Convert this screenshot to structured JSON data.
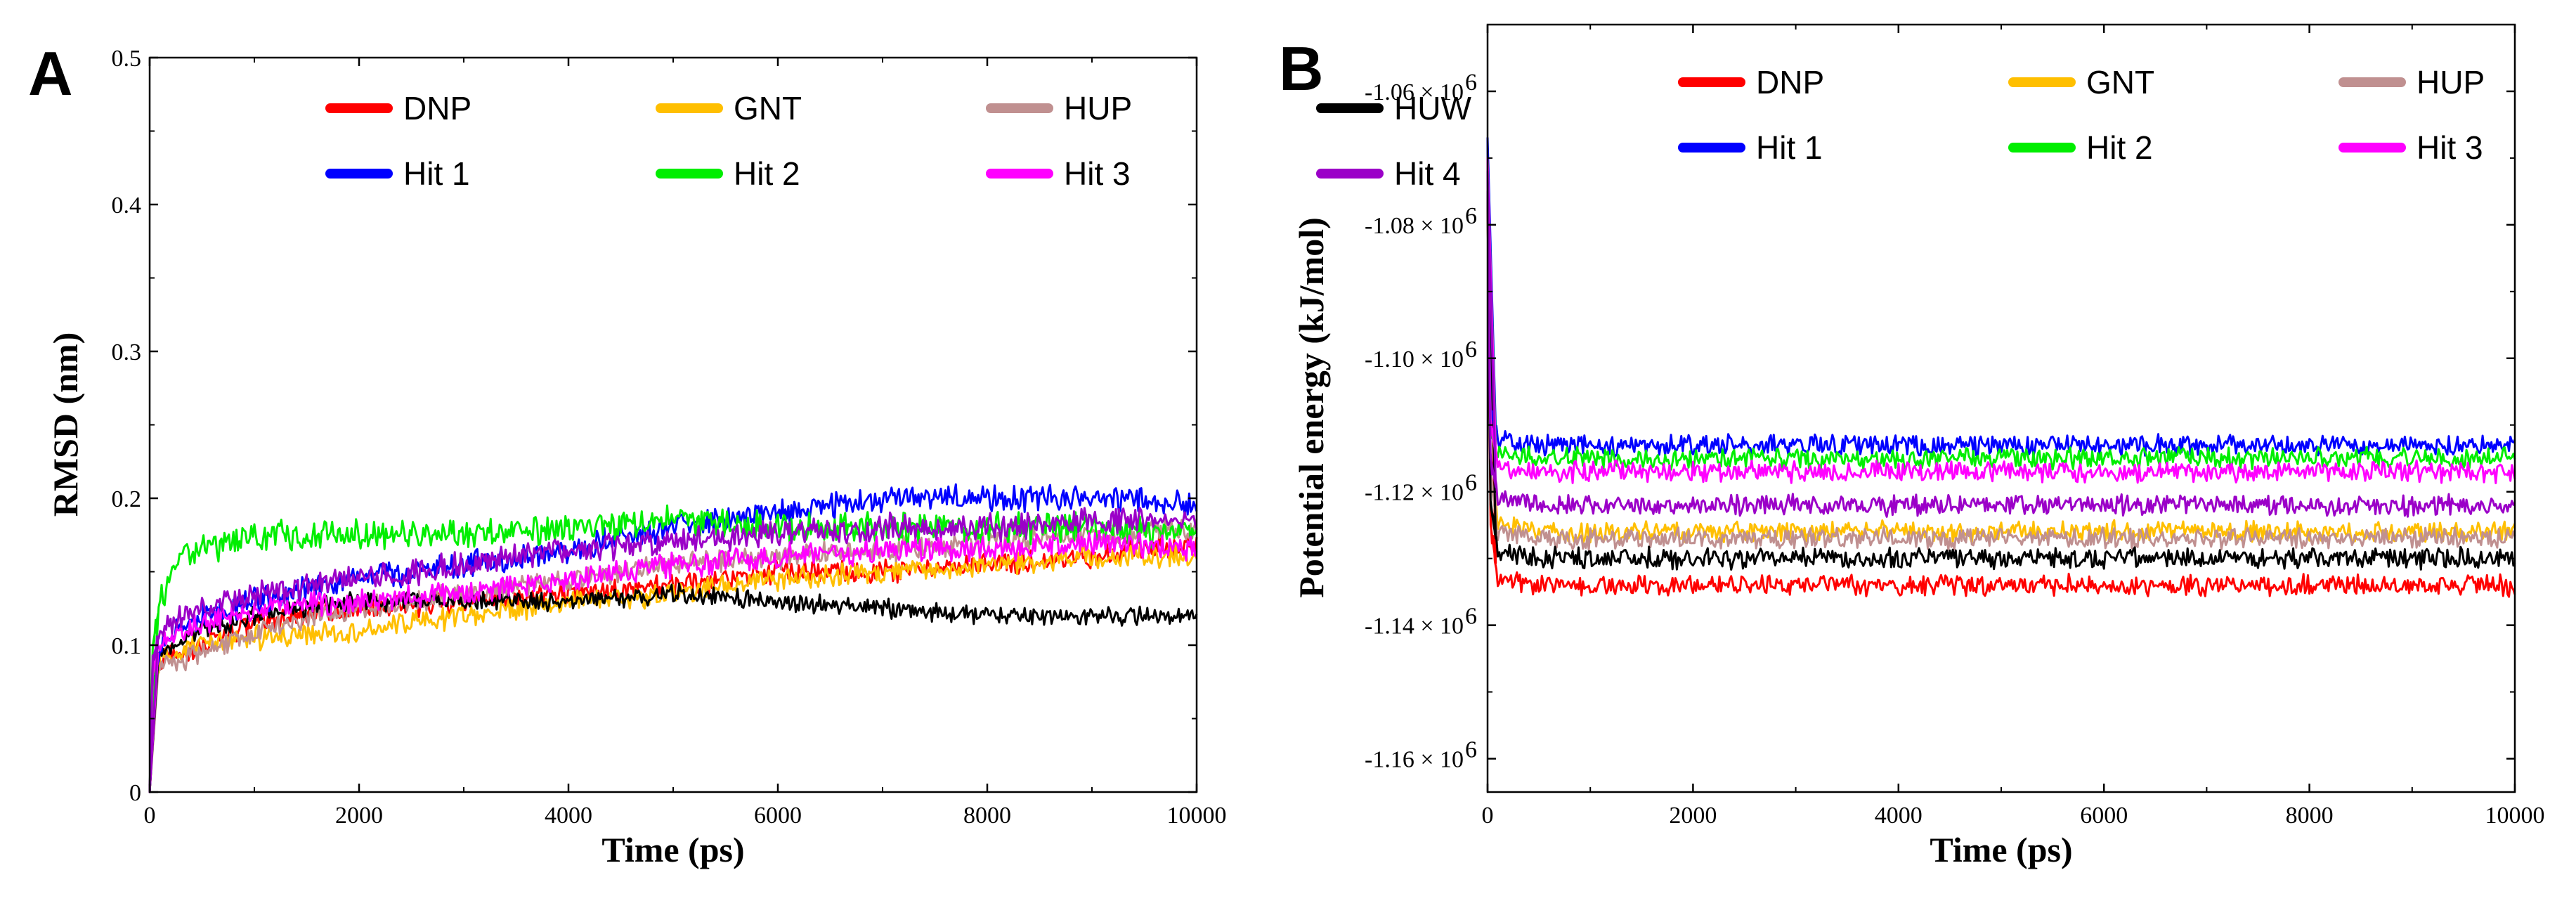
{
  "chart_data": [
    {
      "type": "line",
      "panel_label": "A",
      "xlabel": "Time (ps)",
      "ylabel": "RMSD (nm)",
      "xlim": [
        0,
        10000
      ],
      "ylim": [
        0,
        0.5
      ],
      "xticks": [
        0,
        2000,
        4000,
        6000,
        8000,
        10000
      ],
      "xtick_labels": [
        "0",
        "2000",
        "4000",
        "6000",
        "8000",
        "10000"
      ],
      "yticks": [
        0,
        0.1,
        0.2,
        0.3,
        0.4,
        0.5
      ],
      "ytick_labels": [
        "0",
        "0.1",
        "0.2",
        "0.3",
        "0.4",
        "0.5"
      ],
      "ytick_exponents": [],
      "grid": false,
      "legend_position": "top",
      "series": [
        {
          "name": "DNP",
          "color": "#ff0000",
          "noise": 0.006,
          "x": [
            0,
            30,
            100,
            500,
            1000,
            2000,
            3000,
            4000,
            5000,
            6000,
            7000,
            8000,
            9000,
            10000
          ],
          "values": [
            0,
            0.07,
            0.09,
            0.1,
            0.115,
            0.125,
            0.13,
            0.135,
            0.14,
            0.15,
            0.15,
            0.155,
            0.16,
            0.17
          ]
        },
        {
          "name": "GNT",
          "color": "#ffbf00",
          "noise": 0.006,
          "x": [
            0,
            30,
            100,
            500,
            1000,
            2000,
            3000,
            4000,
            5000,
            6000,
            7000,
            8000,
            9000,
            10000
          ],
          "values": [
            0,
            0.07,
            0.09,
            0.1,
            0.105,
            0.11,
            0.12,
            0.13,
            0.135,
            0.145,
            0.15,
            0.155,
            0.16,
            0.16
          ]
        },
        {
          "name": "HUP",
          "color": "#c09090",
          "noise": 0.006,
          "x": [
            0,
            30,
            100,
            500,
            1000,
            2000,
            3000,
            4000,
            5000,
            6000,
            7000,
            8000,
            9000,
            10000
          ],
          "values": [
            0,
            0.07,
            0.085,
            0.095,
            0.11,
            0.125,
            0.135,
            0.145,
            0.155,
            0.16,
            0.165,
            0.17,
            0.175,
            0.18
          ]
        },
        {
          "name": "HUW",
          "color": "#000000",
          "noise": 0.005,
          "x": [
            0,
            30,
            100,
            500,
            1000,
            2000,
            3000,
            4000,
            5000,
            6000,
            7000,
            8000,
            9000,
            10000
          ],
          "values": [
            0,
            0.07,
            0.095,
            0.11,
            0.12,
            0.13,
            0.13,
            0.13,
            0.135,
            0.13,
            0.125,
            0.12,
            0.12,
            0.12
          ]
        },
        {
          "name": "Hit 1",
          "color": "#0000ff",
          "noise": 0.007,
          "x": [
            0,
            30,
            100,
            500,
            1000,
            2000,
            3000,
            4000,
            5000,
            6000,
            7000,
            8000,
            9000,
            10000
          ],
          "values": [
            0,
            0.08,
            0.1,
            0.12,
            0.13,
            0.145,
            0.155,
            0.165,
            0.18,
            0.19,
            0.2,
            0.2,
            0.2,
            0.195
          ]
        },
        {
          "name": "Hit 2",
          "color": "#00ee00",
          "noise": 0.008,
          "x": [
            0,
            30,
            100,
            300,
            1000,
            2000,
            3000,
            4000,
            5000,
            6000,
            7000,
            8000,
            9000,
            10000
          ],
          "values": [
            0,
            0.1,
            0.13,
            0.16,
            0.175,
            0.175,
            0.175,
            0.18,
            0.185,
            0.18,
            0.18,
            0.18,
            0.18,
            0.175
          ]
        },
        {
          "name": "Hit 3",
          "color": "#ff00ff",
          "noise": 0.007,
          "x": [
            0,
            30,
            100,
            500,
            1000,
            2000,
            3000,
            4000,
            5000,
            6000,
            7000,
            8000,
            9000,
            10000
          ],
          "values": [
            0,
            0.08,
            0.1,
            0.115,
            0.125,
            0.13,
            0.135,
            0.145,
            0.155,
            0.16,
            0.165,
            0.165,
            0.17,
            0.165
          ]
        },
        {
          "name": "Hit 4",
          "color": "#9b00c8",
          "noise": 0.007,
          "x": [
            0,
            30,
            100,
            500,
            1000,
            2000,
            3000,
            4000,
            5000,
            6000,
            7000,
            8000,
            9000,
            10000
          ],
          "values": [
            0,
            0.09,
            0.11,
            0.125,
            0.135,
            0.145,
            0.155,
            0.165,
            0.17,
            0.175,
            0.18,
            0.18,
            0.185,
            0.185
          ]
        }
      ]
    },
    {
      "type": "line",
      "panel_label": "B",
      "xlabel": "Time (ps)",
      "ylabel": "Potential energy (kJ/mol)",
      "xlim": [
        0,
        10000
      ],
      "ylim": [
        -1.165,
        -1.05
      ],
      "xticks": [
        0,
        2000,
        4000,
        6000,
        8000,
        10000
      ],
      "xtick_labels": [
        "0",
        "2000",
        "4000",
        "6000",
        "8000",
        "10000"
      ],
      "yticks": [
        -1.16,
        -1.14,
        -1.12,
        -1.1,
        -1.08,
        -1.06
      ],
      "ytick_labels": [
        "-1.16 × 10",
        "-1.14 × 10",
        "-1.12 × 10",
        "-1.10 × 10",
        "-1.08 × 10",
        "-1.06 × 10"
      ],
      "ytick_exponents": [
        "6",
        "6",
        "6",
        "6",
        "6",
        "6"
      ],
      "y_unit_multiplier": "10^6",
      "grid": false,
      "legend_position": "top",
      "series": [
        {
          "name": "DNP",
          "color": "#ff0000",
          "noise": 0.0012,
          "x": [
            0,
            10,
            30,
            100,
            500,
            10000
          ],
          "values": [
            -1.075,
            -1.095,
            -1.125,
            -1.133,
            -1.134,
            -1.134
          ]
        },
        {
          "name": "GNT",
          "color": "#ffbf00",
          "noise": 0.0012,
          "x": [
            0,
            10,
            30,
            100,
            500,
            10000
          ],
          "values": [
            -1.075,
            -1.095,
            -1.118,
            -1.125,
            -1.126,
            -1.126
          ]
        },
        {
          "name": "HUP",
          "color": "#c09090",
          "noise": 0.0012,
          "x": [
            0,
            10,
            30,
            100,
            500,
            10000
          ],
          "values": [
            -1.075,
            -1.095,
            -1.118,
            -1.126,
            -1.127,
            -1.127
          ]
        },
        {
          "name": "HUW",
          "color": "#000000",
          "noise": 0.0012,
          "x": [
            0,
            10,
            30,
            100,
            500,
            10000
          ],
          "values": [
            -1.075,
            -1.095,
            -1.122,
            -1.129,
            -1.13,
            -1.13
          ]
        },
        {
          "name": "Hit 1",
          "color": "#0000ff",
          "noise": 0.0012,
          "x": [
            0,
            10,
            30,
            100,
            500,
            10000
          ],
          "values": [
            -1.067,
            -1.09,
            -1.108,
            -1.112,
            -1.113,
            -1.113
          ]
        },
        {
          "name": "Hit 2",
          "color": "#00ee00",
          "noise": 0.0012,
          "x": [
            0,
            10,
            30,
            100,
            500,
            10000
          ],
          "values": [
            -1.07,
            -1.09,
            -1.11,
            -1.114,
            -1.115,
            -1.115
          ]
        },
        {
          "name": "Hit 3",
          "color": "#ff00ff",
          "noise": 0.0012,
          "x": [
            0,
            10,
            30,
            100,
            500,
            10000
          ],
          "values": [
            -1.07,
            -1.092,
            -1.11,
            -1.116,
            -1.117,
            -1.117
          ]
        },
        {
          "name": "Hit 4",
          "color": "#9b00c8",
          "noise": 0.0012,
          "x": [
            0,
            10,
            30,
            100,
            500,
            10000
          ],
          "values": [
            -1.072,
            -1.093,
            -1.115,
            -1.121,
            -1.122,
            -1.122
          ]
        }
      ]
    }
  ]
}
